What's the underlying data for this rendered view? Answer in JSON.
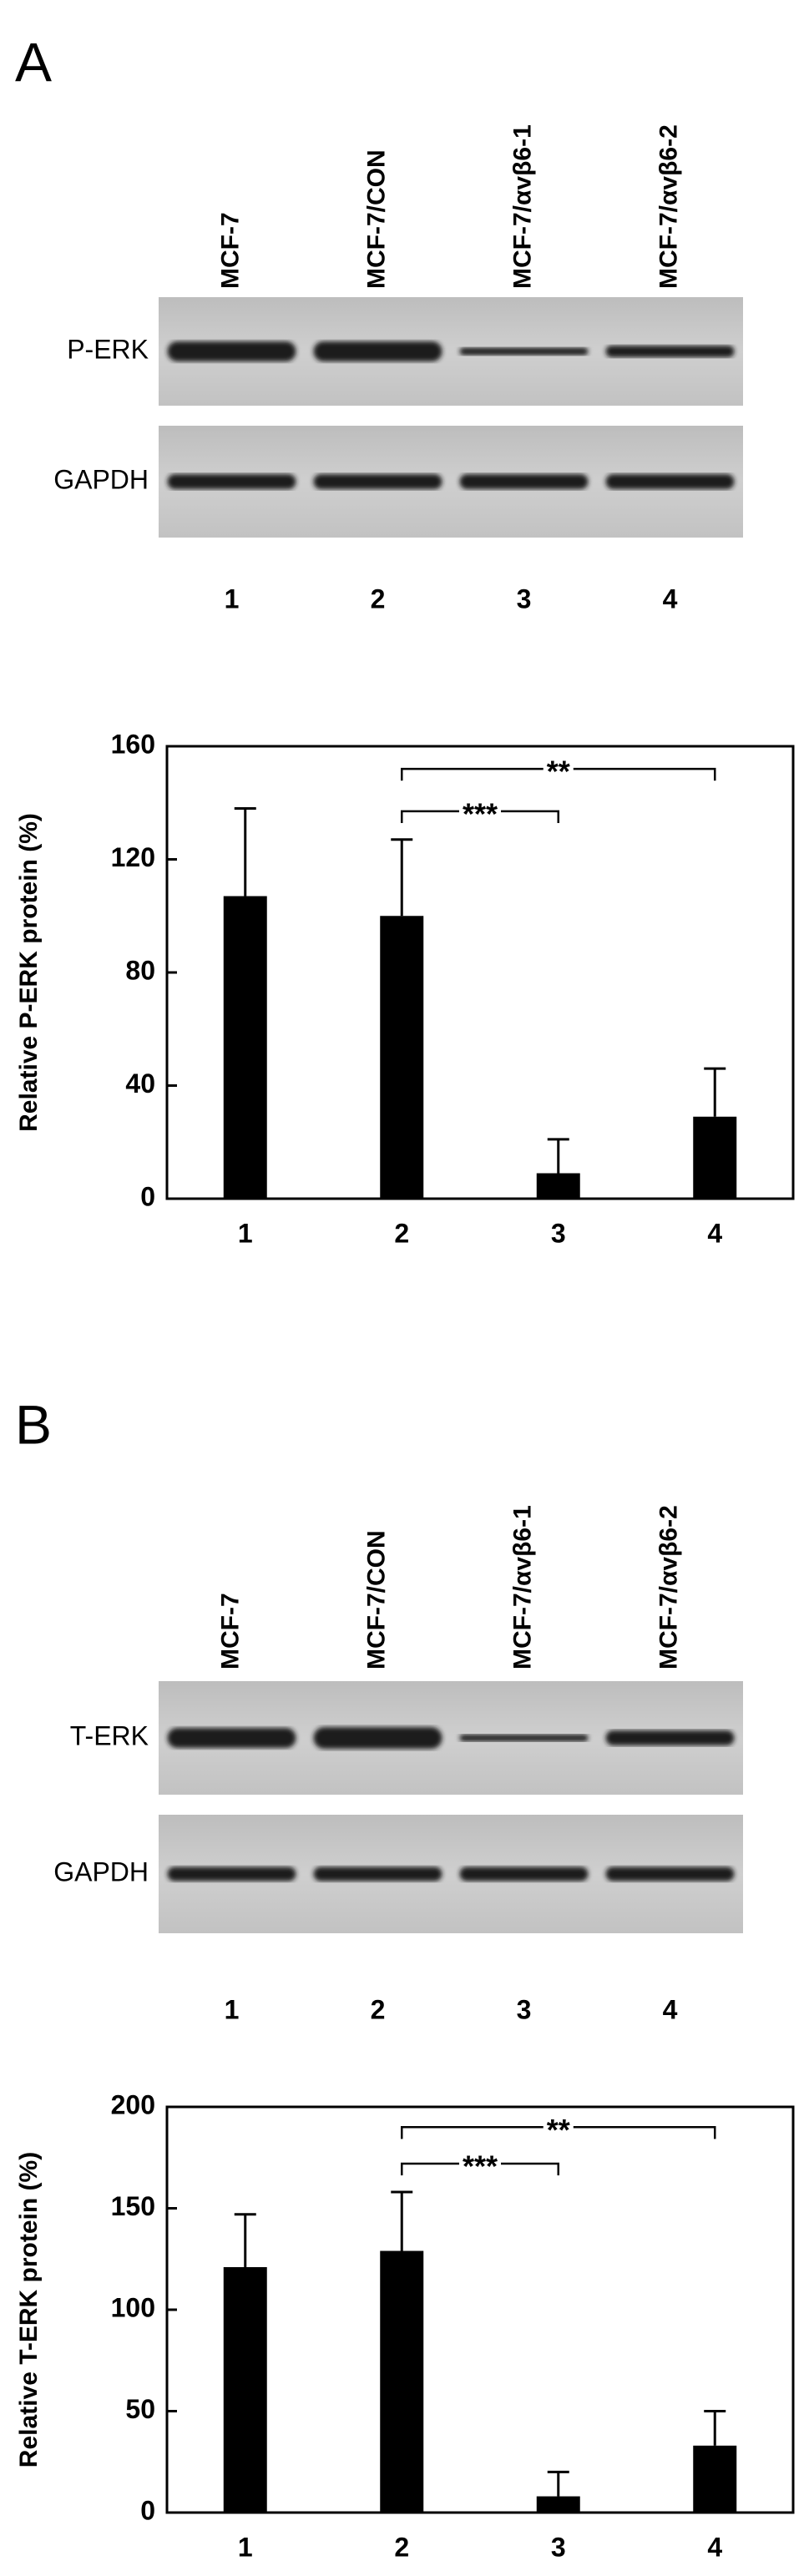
{
  "blots": [
    {
      "panel": "A",
      "lanes": [
        "MCF-7",
        "MCF-7/CON",
        "MCF-7/αvβ6-1",
        "MCF-7/αvβ6-2"
      ],
      "rows": [
        "P-ERK",
        "GAPDH"
      ],
      "lane_numbers": [
        "1",
        "2",
        "3",
        "4"
      ]
    },
    {
      "panel": "B",
      "lanes": [
        "MCF-7",
        "MCF-7/CON",
        "MCF-7/αvβ6-1",
        "MCF-7/αvβ6-2"
      ],
      "rows": [
        "T-ERK",
        "GAPDH"
      ],
      "lane_numbers": [
        "1",
        "2",
        "3",
        "4"
      ]
    }
  ],
  "chart_data": [
    {
      "type": "bar",
      "y_label": "Relative P-ERK protein (%)",
      "categories": [
        "1",
        "2",
        "3",
        "4"
      ],
      "values": [
        107,
        100,
        9,
        29
      ],
      "errors": [
        31,
        27,
        12,
        17
      ],
      "color": "#000000",
      "ylim": [
        0,
        160
      ],
      "yticks": [
        0,
        40,
        80,
        120,
        160
      ],
      "annotations": [
        {
          "between": [
            "2",
            "4"
          ],
          "text": "**",
          "y": 152
        },
        {
          "between": [
            "2",
            "3"
          ],
          "text": "***",
          "y": 137
        }
      ]
    },
    {
      "type": "bar",
      "y_label": "Relative T-ERK protein (%)",
      "categories": [
        "1",
        "2",
        "3",
        "4"
      ],
      "values": [
        121,
        129,
        8,
        33
      ],
      "errors": [
        26,
        29,
        12,
        17
      ],
      "color": "#000000",
      "ylim": [
        0,
        200
      ],
      "yticks": [
        0,
        50,
        100,
        150,
        200
      ],
      "annotations": [
        {
          "between": [
            "2",
            "4"
          ],
          "text": "**",
          "y": 190
        },
        {
          "between": [
            "2",
            "3"
          ],
          "text": "***",
          "y": 172
        }
      ]
    }
  ]
}
